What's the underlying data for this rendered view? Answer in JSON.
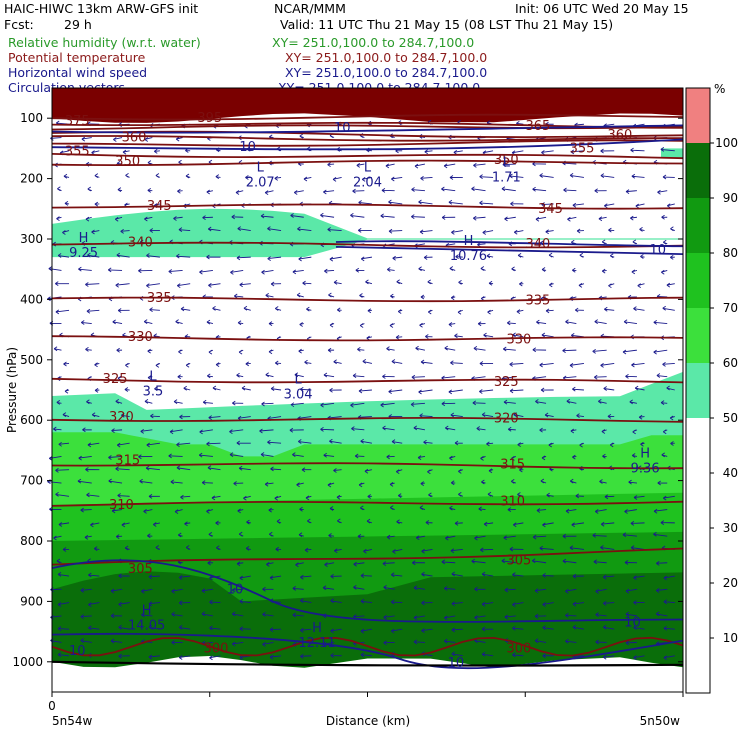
{
  "header": {
    "title_left": "HAIC-HIWC 13km ARW-GFS init",
    "title_center": "NCAR/MMM",
    "init": "Init: 06 UTC Wed 20 May 15",
    "fcst_label": "Fcst:",
    "fcst_value": "29 h",
    "valid": "Valid: 11 UTC Thu 21 May 15 (08 LST Thu 21 May 15)"
  },
  "fields": [
    {
      "name": "Relative humidity (w.r.t. water)",
      "xy": "XY= 251.0,100.0 to 284.7,100.0",
      "color": "#2a9a2a"
    },
    {
      "name": "Potential temperature",
      "xy": "XY= 251.0,100.0 to 284.7,100.0",
      "color": "#8b1a1a"
    },
    {
      "name": "Horizontal wind speed",
      "xy": "XY= 251.0,100.0 to 284.7,100.0",
      "color": "#1a1a8c"
    },
    {
      "name": "Circulation vectors",
      "xy": "XY= 251.0,100.0 to 284.7,100.0",
      "color": "#1a1a8c"
    }
  ],
  "axes": {
    "ylabel": "Pressure (hPa)",
    "xlabel": "Distance (km)",
    "x_left_tick": "0",
    "x_left_label": "5n54w",
    "x_right_label": "5n50w",
    "yticks": [
      "100",
      "200",
      "300",
      "400",
      "500",
      "600",
      "700",
      "800",
      "900",
      "1000"
    ],
    "colorbar_unit": "%",
    "colorbar_ticks": [
      "100",
      "90",
      "80",
      "70",
      "60",
      "50",
      "40",
      "30",
      "20",
      "10"
    ]
  },
  "chart_data": {
    "type": "heatmap",
    "ylim": [
      1050,
      50
    ],
    "colorbar": {
      "levels": [
        {
          "range": [
            100,
            110
          ],
          "color": "#f08080"
        },
        {
          "range": [
            90,
            100
          ],
          "color": "#0a6e0a"
        },
        {
          "range": [
            80,
            90
          ],
          "color": "#119a11"
        },
        {
          "range": [
            70,
            80
          ],
          "color": "#1fc21f"
        },
        {
          "range": [
            60,
            70
          ],
          "color": "#3ce03c"
        },
        {
          "range": [
            50,
            60
          ],
          "color": "#5be8a8"
        },
        {
          "range": [
            0,
            50
          ],
          "color": "#ffffff"
        }
      ]
    },
    "theta_labels": [
      {
        "text": "395",
        "x": 0.25,
        "p": 100
      },
      {
        "text": "375",
        "x": 0.04,
        "p": 105
      },
      {
        "text": "360",
        "x": 0.13,
        "p": 132
      },
      {
        "text": "355",
        "x": 0.04,
        "p": 155
      },
      {
        "text": "365",
        "x": 0.77,
        "p": 113
      },
      {
        "text": "360",
        "x": 0.9,
        "p": 128
      },
      {
        "text": "355",
        "x": 0.84,
        "p": 150
      },
      {
        "text": "350",
        "x": 0.12,
        "p": 172
      },
      {
        "text": "350",
        "x": 0.72,
        "p": 169
      },
      {
        "text": "345",
        "x": 0.17,
        "p": 245
      },
      {
        "text": "345",
        "x": 0.79,
        "p": 250
      },
      {
        "text": "340",
        "x": 0.14,
        "p": 306
      },
      {
        "text": "340",
        "x": 0.77,
        "p": 308
      },
      {
        "text": "335",
        "x": 0.17,
        "p": 398
      },
      {
        "text": "335",
        "x": 0.77,
        "p": 402
      },
      {
        "text": "330",
        "x": 0.14,
        "p": 462
      },
      {
        "text": "330",
        "x": 0.74,
        "p": 466
      },
      {
        "text": "325",
        "x": 0.1,
        "p": 532
      },
      {
        "text": "325",
        "x": 0.72,
        "p": 537
      },
      {
        "text": "320",
        "x": 0.11,
        "p": 595
      },
      {
        "text": "320",
        "x": 0.72,
        "p": 597
      },
      {
        "text": "315",
        "x": 0.12,
        "p": 667
      },
      {
        "text": "315",
        "x": 0.73,
        "p": 673
      },
      {
        "text": "310",
        "x": 0.11,
        "p": 740
      },
      {
        "text": "310",
        "x": 0.73,
        "p": 735
      },
      {
        "text": "305",
        "x": 0.14,
        "p": 846
      },
      {
        "text": "305",
        "x": 0.74,
        "p": 832
      },
      {
        "text": "300",
        "x": 0.26,
        "p": 978
      },
      {
        "text": "300",
        "x": 0.74,
        "p": 978
      }
    ],
    "wind_labels": [
      {
        "text": "10",
        "x": 0.46,
        "p": 116
      },
      {
        "text": "10",
        "x": 0.31,
        "p": 148
      },
      {
        "text": "10",
        "x": 0.96,
        "p": 318
      },
      {
        "text": "10",
        "x": 0.29,
        "p": 880
      },
      {
        "text": "10",
        "x": 0.92,
        "p": 935
      },
      {
        "text": "10",
        "x": 0.04,
        "p": 982
      },
      {
        "text": "10",
        "x": 0.64,
        "p": 1002
      }
    ],
    "extrema": [
      {
        "type": "L",
        "value": "2.07",
        "x": 0.33,
        "p": 198
      },
      {
        "type": "L",
        "value": "2.04",
        "x": 0.5,
        "p": 198
      },
      {
        "type": "L",
        "value": "1.71",
        "x": 0.72,
        "p": 190
      },
      {
        "type": "H",
        "value": "9.25",
        "x": 0.05,
        "p": 315
      },
      {
        "type": "H",
        "value": "10.76",
        "x": 0.66,
        "p": 320
      },
      {
        "type": "L",
        "value": "3.5",
        "x": 0.16,
        "p": 544
      },
      {
        "type": "L",
        "value": "3.04",
        "x": 0.39,
        "p": 549
      },
      {
        "type": "H",
        "value": "9.36",
        "x": 0.94,
        "p": 672
      },
      {
        "type": "H",
        "value": "14.05",
        "x": 0.15,
        "p": 932
      },
      {
        "type": "H",
        "value": "12.11",
        "x": 0.42,
        "p": 961
      }
    ],
    "wind_vector_u_direction": "easterly (arrows pointing left)"
  }
}
